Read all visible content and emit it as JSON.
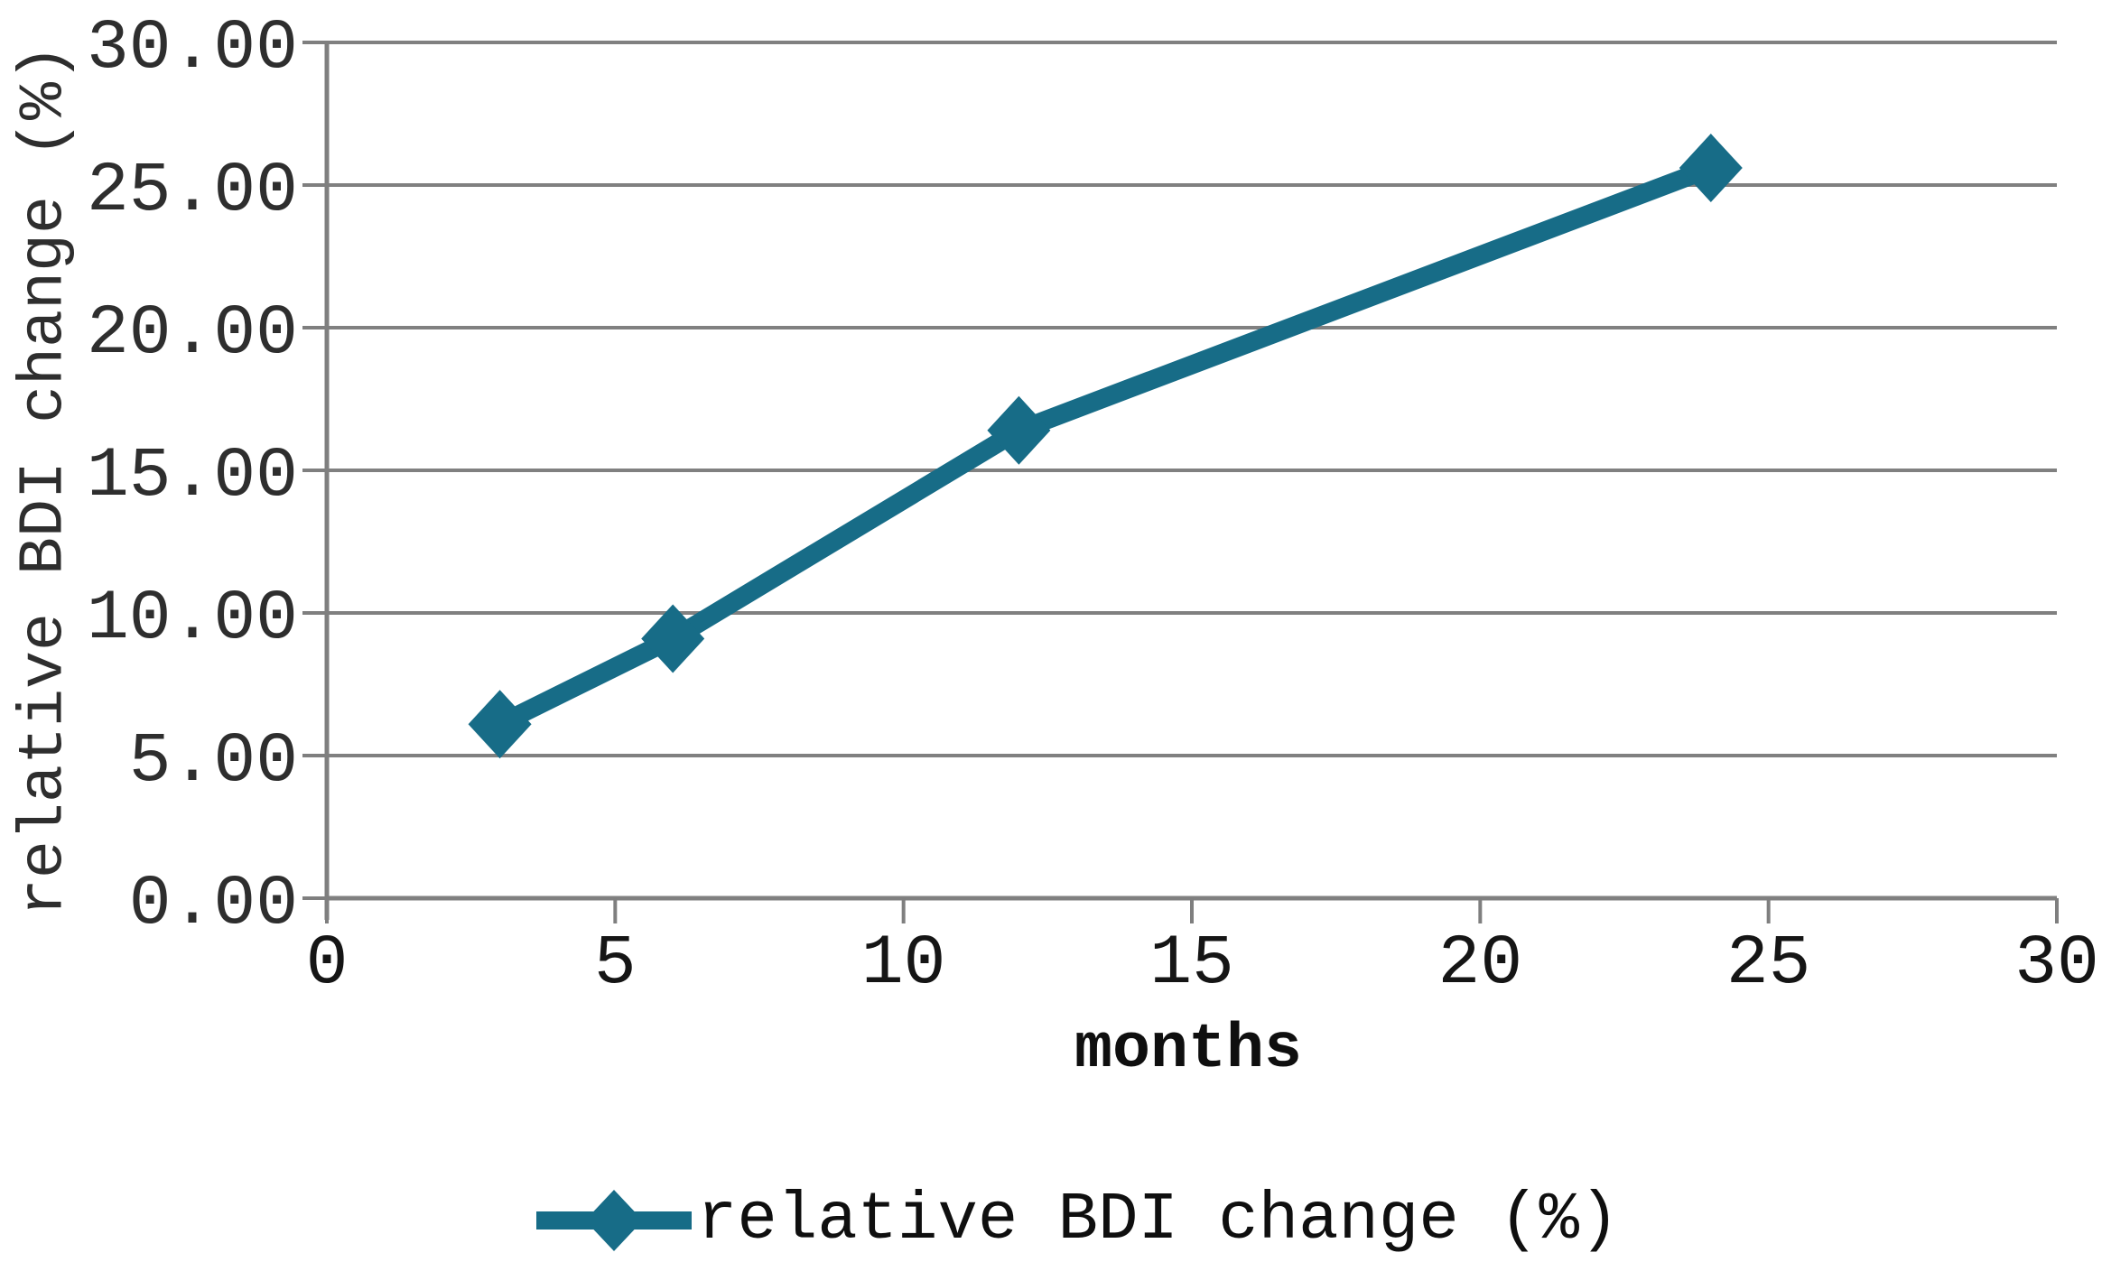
{
  "chart_data": {
    "type": "line",
    "x": [
      3,
      6,
      12,
      24
    ],
    "series": [
      {
        "name": "relative BDI change (%)",
        "values": [
          6.1,
          9.1,
          16.4,
          25.6
        ]
      }
    ],
    "xlabel": "months",
    "ylabel": "relative BDI change (%)",
    "xlim": [
      0,
      30
    ],
    "ylim": [
      0,
      30
    ],
    "xtick_values": [
      0,
      5,
      10,
      15,
      20,
      25,
      30
    ],
    "xtick_labels": [
      "0",
      "5",
      "10",
      "15",
      "20",
      "25",
      "30"
    ],
    "ytick_values": [
      0,
      5,
      10,
      15,
      20,
      25,
      30
    ],
    "ytick_labels": [
      "0.00",
      "5.00",
      "10.00",
      "15.00",
      "20.00",
      "25.00",
      "30.00"
    ],
    "grid": "horizontal",
    "marker": "diamond",
    "legend": {
      "position": "bottom-center",
      "label": "relative BDI change (%)"
    },
    "colors": {
      "line": "#176c87",
      "grid": "#808080",
      "axis": "#7f7f7f",
      "ytick_text": "#2e2e2e",
      "xtick_text": "#151515"
    }
  }
}
